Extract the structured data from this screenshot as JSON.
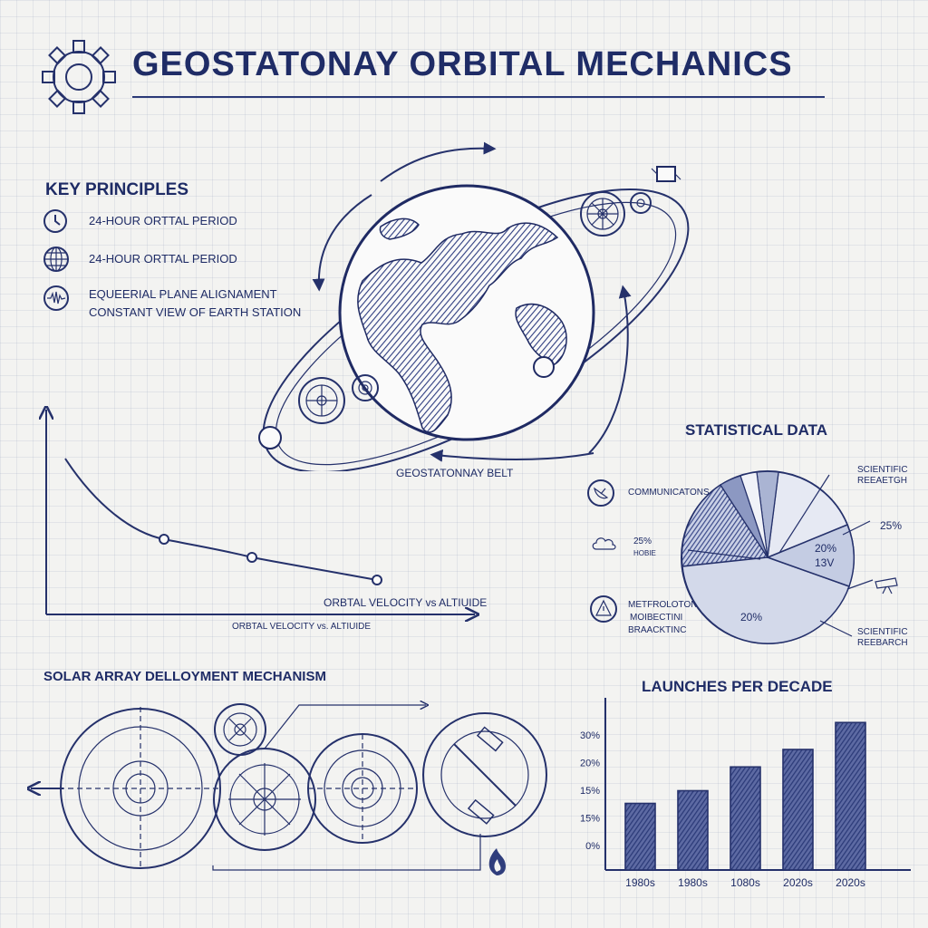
{
  "title": "GEOSTATONAY ORBITAL MECHANICS",
  "key_principles": {
    "heading": "KEY PRINCIPLES",
    "items": [
      {
        "icon": "clock-icon",
        "lines": [
          "24-HOUR ORTTAL PERIOD"
        ]
      },
      {
        "icon": "globe-icon",
        "lines": [
          "24-HOUR ORTTAL PERIOD"
        ]
      },
      {
        "icon": "signal-wave-icon",
        "lines": [
          "EQUEERIAL PLANE ALIGNAMENT",
          "CONSTANT VIEW OF EARTH STATION"
        ]
      }
    ]
  },
  "orbit": {
    "belt_label": "GEOSTATONNAY BELT"
  },
  "velocity_chart": {
    "series_label": "ORBTAL VELOCITY vs ALTIUIDE",
    "axis_label": "ORBTAL VELOCITY vs. ALTIUIDE"
  },
  "solar_array": {
    "heading": "SOLAR ARRAY DELLOYMENT MECHANISM"
  },
  "statistical_data": {
    "heading": "STATISTICAL DATA",
    "labels": {
      "communications": "COMMUNICATONS",
      "pct_25_left": "25%",
      "hobie": "HOBIE",
      "metro_1": "METFROLOTON",
      "metro_2": "MOIBECTINI",
      "metro_3": "BRAACKTINC",
      "scientific_top_1": "SCIENTIFIC",
      "scientific_top_2": "REEAETGH",
      "pct_25_right": "25%",
      "pct_20_inner": "20%",
      "v13": "13V",
      "pct_20_bottom": "20%",
      "scientific_bot_1": "SCIENTIFIC",
      "scientific_bot_2": "REEBARCH"
    },
    "colors": {
      "dark": "#3b4a8a",
      "light": "#c9d0e6",
      "lighter": "#e0e4f0"
    }
  },
  "chart_data": {
    "type": "bar",
    "title": "LAUNCHES PER DECADE",
    "categories": [
      "1980s",
      "1980s",
      "1080s",
      "2020s",
      "2020s"
    ],
    "values": [
      0.42,
      0.5,
      0.65,
      0.76,
      0.93
    ],
    "value_unit": "fraction of axis height",
    "ytick_labels": [
      "30%",
      "20%",
      "15%",
      "15%",
      "0%"
    ]
  }
}
